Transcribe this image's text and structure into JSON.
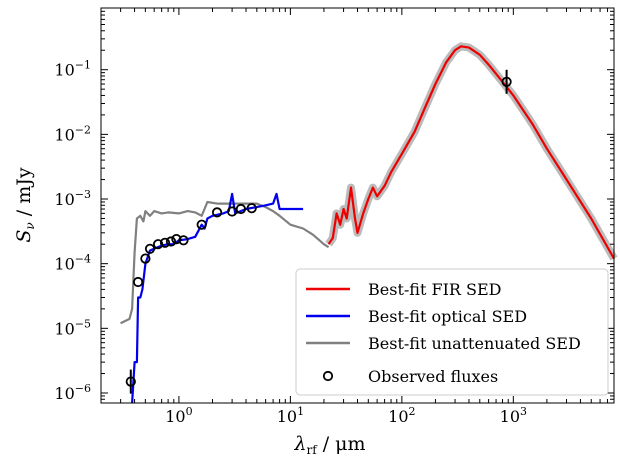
{
  "chart_data": {
    "type": "line",
    "xscale": "log",
    "yscale": "log",
    "xlabel_main": "λ",
    "xlabel_sub": "rf",
    "xlabel_unit": " / μm",
    "ylabel_main": "S",
    "ylabel_sub": "ν",
    "ylabel_unit": " / mJy",
    "xlim": [
      0.2,
      8000
    ],
    "ylim": [
      7e-07,
      0.9
    ],
    "xticks": [
      {
        "value": 1,
        "base": "10",
        "exp": "0"
      },
      {
        "value": 10,
        "base": "10",
        "exp": "1"
      },
      {
        "value": 100,
        "base": "10",
        "exp": "2"
      },
      {
        "value": 1000,
        "base": "10",
        "exp": "3"
      }
    ],
    "yticks": [
      {
        "value": 1e-06,
        "base": "10",
        "exp": "−6"
      },
      {
        "value": 1e-05,
        "base": "10",
        "exp": "−5"
      },
      {
        "value": 0.0001,
        "base": "10",
        "exp": "−4"
      },
      {
        "value": 0.001,
        "base": "10",
        "exp": "−3"
      },
      {
        "value": 0.01,
        "base": "10",
        "exp": "−2"
      },
      {
        "value": 0.1,
        "base": "10",
        "exp": "−1"
      }
    ],
    "legend_position": "lower-right",
    "series": [
      {
        "name": "Best-fit unattenuated SED",
        "color": "#808080",
        "points": [
          [
            0.3,
            1.2e-05
          ],
          [
            0.33,
            1.3e-05
          ],
          [
            0.36,
            1.4e-05
          ],
          [
            0.38,
            2e-05
          ],
          [
            0.4,
            0.00015
          ],
          [
            0.42,
            0.0005
          ],
          [
            0.45,
            0.00055
          ],
          [
            0.48,
            0.00045
          ],
          [
            0.5,
            0.00065
          ],
          [
            0.55,
            0.00055
          ],
          [
            0.6,
            0.00065
          ],
          [
            0.7,
            0.0006
          ],
          [
            0.8,
            0.00062
          ],
          [
            1.0,
            0.0006
          ],
          [
            1.2,
            0.00065
          ],
          [
            1.4,
            0.00062
          ],
          [
            1.6,
            0.00055
          ],
          [
            1.8,
            0.0009
          ],
          [
            2.2,
            0.00085
          ],
          [
            3.0,
            0.00085
          ],
          [
            4.0,
            0.00085
          ],
          [
            5.0,
            0.00085
          ],
          [
            6.0,
            0.00075
          ],
          [
            7.0,
            0.00065
          ],
          [
            8.0,
            0.00055
          ],
          [
            10.0,
            0.0004
          ],
          [
            13.0,
            0.00035
          ],
          [
            16.0,
            0.00028
          ],
          [
            20.0,
            0.0002
          ],
          [
            22.0,
            0.00018
          ]
        ]
      },
      {
        "name": "Best-fit optical SED",
        "color": "#0000ee",
        "points": [
          [
            0.38,
            3e-07
          ],
          [
            0.4,
            3e-06
          ],
          [
            0.42,
            3e-06
          ],
          [
            0.43,
            3e-05
          ],
          [
            0.45,
            3e-05
          ],
          [
            0.47,
            4e-05
          ],
          [
            0.5,
            0.0001
          ],
          [
            0.55,
            0.00016
          ],
          [
            0.6,
            0.00017
          ],
          [
            0.7,
            0.00019
          ],
          [
            0.8,
            0.0002
          ],
          [
            0.9,
            0.0002
          ],
          [
            1.0,
            0.00023
          ],
          [
            1.2,
            0.00024
          ],
          [
            1.4,
            0.00026
          ],
          [
            1.6,
            0.0004
          ],
          [
            1.7,
            0.00035
          ],
          [
            1.8,
            0.0005
          ],
          [
            2.0,
            0.00055
          ],
          [
            2.5,
            0.0006
          ],
          [
            2.8,
            0.00065
          ],
          [
            3.0,
            0.0012
          ],
          [
            3.2,
            0.0006
          ],
          [
            4.0,
            0.0007
          ],
          [
            5.0,
            0.00075
          ],
          [
            6.0,
            0.0008
          ],
          [
            7.0,
            0.00085
          ],
          [
            7.5,
            0.0012
          ],
          [
            8.0,
            0.0007
          ],
          [
            10.0,
            0.0007
          ],
          [
            13.0,
            0.0007
          ]
        ]
      },
      {
        "name": "Best-fit FIR SED",
        "color": "#ee0000",
        "points": [
          [
            22,
            0.0002
          ],
          [
            24,
            0.00025
          ],
          [
            26,
            0.0006
          ],
          [
            28,
            0.0004
          ],
          [
            30,
            0.0007
          ],
          [
            32,
            0.0005
          ],
          [
            35,
            0.0015
          ],
          [
            38,
            0.0005
          ],
          [
            40,
            0.0003
          ],
          [
            45,
            0.0006
          ],
          [
            50,
            0.001
          ],
          [
            55,
            0.0015
          ],
          [
            60,
            0.0011
          ],
          [
            70,
            0.0016
          ],
          [
            80,
            0.0026
          ],
          [
            100,
            0.005
          ],
          [
            130,
            0.011
          ],
          [
            160,
            0.025
          ],
          [
            200,
            0.06
          ],
          [
            250,
            0.13
          ],
          [
            300,
            0.2
          ],
          [
            340,
            0.23
          ],
          [
            400,
            0.22
          ],
          [
            500,
            0.17
          ],
          [
            600,
            0.12
          ],
          [
            800,
            0.065
          ],
          [
            1000,
            0.04
          ],
          [
            1500,
            0.014
          ],
          [
            2000,
            0.006
          ],
          [
            3000,
            0.002
          ],
          [
            5000,
            0.0005
          ],
          [
            8000,
            0.00012
          ]
        ]
      }
    ],
    "observed_fluxes": {
      "name": "Observed fluxes",
      "points": [
        [
          0.37,
          1.5e-06
        ],
        [
          0.43,
          5.2e-05
        ],
        [
          0.5,
          0.00012
        ],
        [
          0.55,
          0.00017
        ],
        [
          0.65,
          0.0002
        ],
        [
          0.75,
          0.00021
        ],
        [
          0.85,
          0.00022
        ],
        [
          0.95,
          0.00024
        ],
        [
          1.1,
          0.00023
        ],
        [
          1.6,
          0.0004
        ],
        [
          2.2,
          0.00062
        ],
        [
          3.0,
          0.00064
        ],
        [
          3.6,
          0.0007
        ],
        [
          4.5,
          0.00072
        ],
        [
          870,
          0.065
        ]
      ]
    }
  }
}
